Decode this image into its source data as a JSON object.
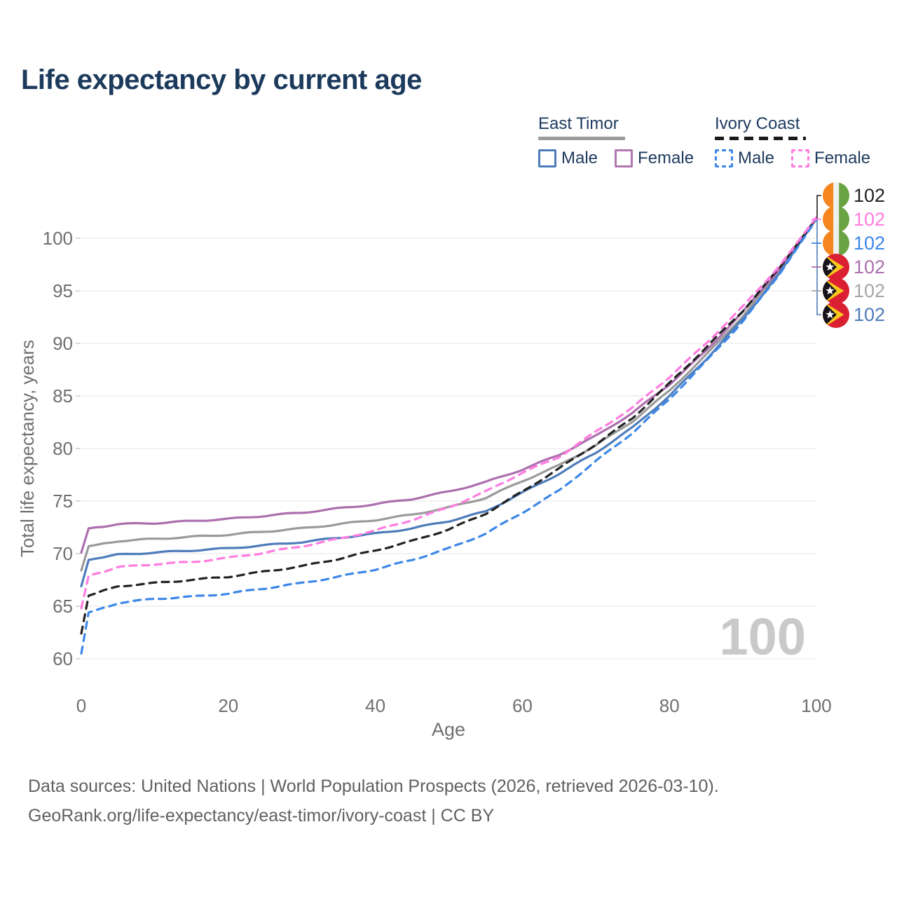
{
  "page": {
    "title": "Life expectancy by current age",
    "background": "#ffffff"
  },
  "legend": {
    "groups": [
      {
        "id": "east-timor",
        "label": "East Timor",
        "underline": {
          "style": "solid",
          "color": "#9b9b9b"
        },
        "items": [
          {
            "id": "east-timor-male",
            "label": "Male",
            "color": "#4e7cbb",
            "dash": "solid"
          },
          {
            "id": "east-timor-female",
            "label": "Female",
            "color": "#b077b0",
            "dash": "solid"
          }
        ]
      },
      {
        "id": "ivory-coast",
        "label": "Ivory Coast",
        "underline": {
          "style": "dashed",
          "color": "#1a1a1a"
        },
        "items": [
          {
            "id": "ivory-coast-male",
            "label": "Male",
            "color": "#3d87e8",
            "dash": "dashed"
          },
          {
            "id": "ivory-coast-female",
            "label": "Female",
            "color": "#ff7ce0",
            "dash": "dashed"
          }
        ]
      }
    ]
  },
  "chart_data": {
    "type": "line",
    "title": "Life expectancy by current age",
    "xlabel": "Age",
    "ylabel": "Total life expectancy, years",
    "xlim": [
      0,
      100
    ],
    "ylim": [
      58.5,
      103
    ],
    "xticks": [
      0,
      20,
      40,
      60,
      80,
      100
    ],
    "yticks": [
      60,
      65,
      70,
      75,
      80,
      85,
      90,
      95,
      100
    ],
    "grid": "horizontal",
    "legend_position": "top-right",
    "watermark": "100",
    "ages": [
      0,
      1,
      5,
      10,
      15,
      20,
      25,
      30,
      35,
      40,
      45,
      50,
      55,
      60,
      65,
      70,
      75,
      80,
      85,
      90,
      95,
      100
    ],
    "series": [
      {
        "name": "East Timor All",
        "id": "east-timor-all",
        "color": "#9a9a9a",
        "dash": "solid",
        "values": [
          68.4,
          70.7,
          71.2,
          71.4,
          71.6,
          71.8,
          72.1,
          72.4,
          72.8,
          73.2,
          73.7,
          74.4,
          75.3,
          76.9,
          78.4,
          80.3,
          82.6,
          85.5,
          88.9,
          92.6,
          96.9,
          101.9
        ]
      },
      {
        "name": "East Timor Female",
        "id": "east-timor-female",
        "color": "#ad6fae",
        "dash": "solid",
        "values": [
          70.1,
          72.4,
          72.8,
          72.9,
          73.1,
          73.3,
          73.6,
          73.9,
          74.3,
          74.7,
          75.2,
          75.9,
          76.8,
          78.0,
          79.4,
          81.2,
          83.4,
          86.1,
          89.3,
          93.0,
          97.1,
          101.9
        ]
      },
      {
        "name": "East Timor Male",
        "id": "east-timor-male",
        "color": "#4e7cbb",
        "dash": "solid",
        "values": [
          66.9,
          69.4,
          69.9,
          70.1,
          70.3,
          70.5,
          70.8,
          71.1,
          71.5,
          71.9,
          72.4,
          73.1,
          74.0,
          75.8,
          77.6,
          79.6,
          82.0,
          85.0,
          88.5,
          92.3,
          96.7,
          101.9
        ]
      },
      {
        "name": "Ivory Coast All",
        "id": "ivory-coast-all",
        "color": "#222222",
        "dash": "dashed",
        "values": [
          62.4,
          66.0,
          66.9,
          67.2,
          67.5,
          67.8,
          68.3,
          68.8,
          69.5,
          70.3,
          71.2,
          72.3,
          73.8,
          75.9,
          78.1,
          80.4,
          82.9,
          86.2,
          89.6,
          93.1,
          97.2,
          101.9
        ]
      },
      {
        "name": "Ivory Coast Male",
        "id": "ivory-coast-male",
        "color": "#3d87e8",
        "dash": "dashed",
        "values": [
          60.5,
          64.4,
          65.3,
          65.7,
          65.9,
          66.2,
          66.7,
          67.2,
          67.8,
          68.5,
          69.4,
          70.5,
          71.9,
          73.9,
          76.0,
          78.8,
          81.5,
          84.7,
          88.3,
          92.1,
          96.6,
          101.8
        ]
      },
      {
        "name": "Ivory Coast Female",
        "id": "ivory-coast-female",
        "color": "#ff7ce0",
        "dash": "dashed",
        "values": [
          64.8,
          67.9,
          68.7,
          69.0,
          69.2,
          69.6,
          70.1,
          70.7,
          71.4,
          72.2,
          73.2,
          74.4,
          75.9,
          77.7,
          79.2,
          81.6,
          83.9,
          86.8,
          90.0,
          93.5,
          97.4,
          102.0
        ]
      }
    ],
    "end_labels": [
      {
        "flag": "ivory-coast",
        "series": "ivory-coast-all",
        "value": "102",
        "color": "#222222"
      },
      {
        "flag": "ivory-coast",
        "series": "ivory-coast-female",
        "value": "102",
        "color": "#ff7ce0"
      },
      {
        "flag": "ivory-coast",
        "series": "ivory-coast-male",
        "value": "102",
        "color": "#3d87e8"
      },
      {
        "flag": "east-timor",
        "series": "east-timor-female",
        "value": "102",
        "color": "#ad6fae"
      },
      {
        "flag": "east-timor",
        "series": "east-timor-all",
        "value": "102",
        "color": "#a6a6a6"
      },
      {
        "flag": "east-timor",
        "series": "east-timor-male",
        "value": "102",
        "color": "#4e7cbb"
      }
    ],
    "flag_colors": {
      "ivory-coast": {
        "orange": "#f5861f",
        "white": "#efefec",
        "green": "#6aa342"
      },
      "east-timor": {
        "red": "#da2032",
        "yellow": "#f8c81c",
        "black": "#17131a",
        "star": "#ffffff"
      }
    }
  },
  "footer": {
    "line1": "Data sources: United Nations | World Population Prospects (2026, retrieved 2026-03-10).",
    "line2": "GeoRank.org/life-expectancy/east-timor/ivory-coast | CC BY"
  }
}
